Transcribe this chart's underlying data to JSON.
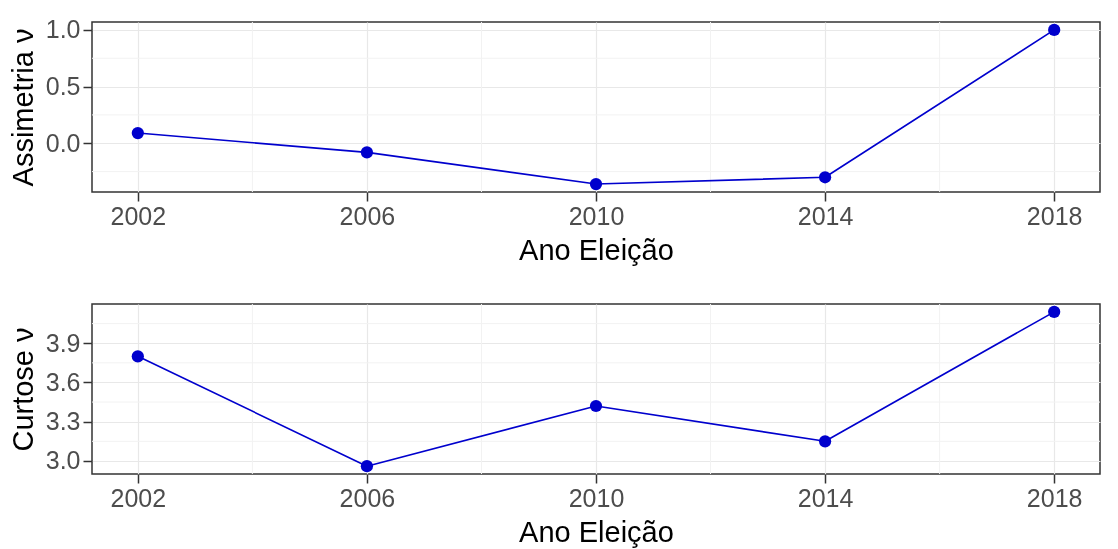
{
  "chart_data": [
    {
      "type": "line",
      "xlabel": "Ano Eleição",
      "ylabel": "Assimetria ν",
      "x": [
        2002,
        2006,
        2010,
        2014,
        2018
      ],
      "series": [
        {
          "color": "#0000cd",
          "values": [
            0.09,
            -0.08,
            -0.36,
            -0.3,
            1.0
          ]
        }
      ],
      "xlim": [
        2001.2,
        2018.8
      ],
      "xticks": [
        2002,
        2006,
        2010,
        2014,
        2018
      ],
      "ylim": [
        -0.43,
        1.07
      ],
      "yticks": [
        {
          "value": 0,
          "label": "0.0"
        },
        {
          "value": 0.5,
          "label": "0.5"
        },
        {
          "value": 1,
          "label": "1.0"
        }
      ],
      "grid": true,
      "marker": "circle",
      "line_style": "solid"
    },
    {
      "type": "line",
      "xlabel": "Ano Eleição",
      "ylabel": "Curtose ν",
      "x": [
        2002,
        2006,
        2010,
        2014,
        2018
      ],
      "series": [
        {
          "color": "#0000cd",
          "values": [
            3.8,
            2.96,
            3.42,
            3.15,
            4.14
          ]
        }
      ],
      "xlim": [
        2001.2,
        2018.8
      ],
      "xticks": [
        2002,
        2006,
        2010,
        2014,
        2018
      ],
      "ylim": [
        2.9,
        4.2
      ],
      "yticks": [
        {
          "value": 3,
          "label": "3.0"
        },
        {
          "value": 3.3,
          "label": "3.3"
        },
        {
          "value": 3.6,
          "label": "3.6"
        },
        {
          "value": 3.9,
          "label": "3.9"
        }
      ],
      "grid": true,
      "marker": "circle",
      "line_style": "solid"
    }
  ]
}
